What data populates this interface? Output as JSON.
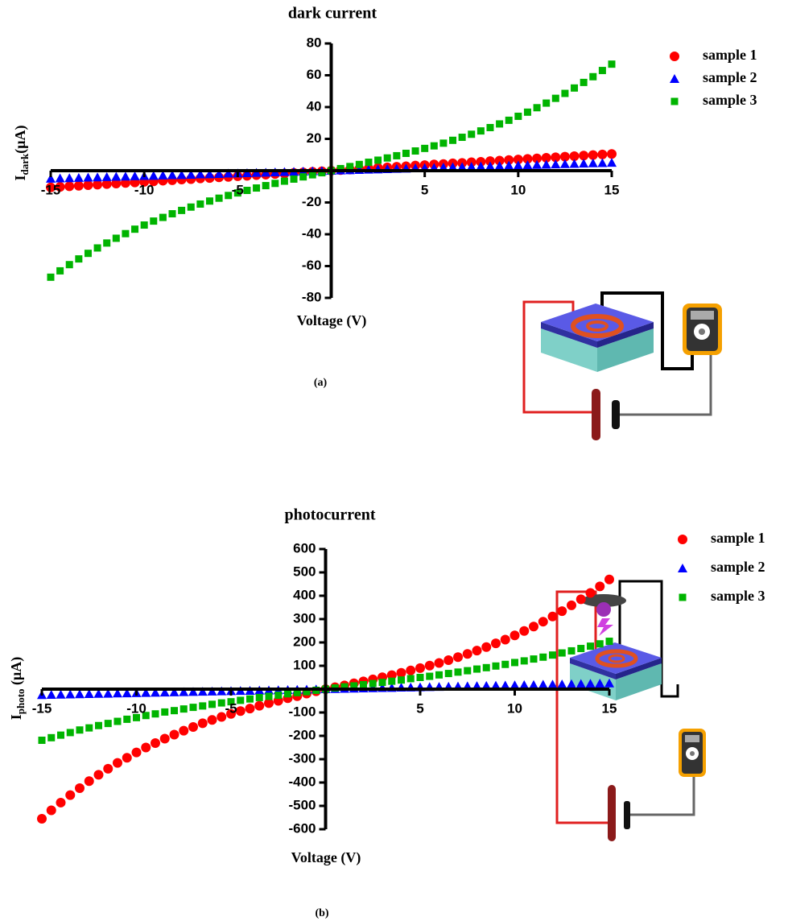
{
  "chart_data": [
    {
      "type": "scatter",
      "title": "dark current",
      "x_label": "Voltage (V)",
      "y_label": [
        "I",
        "dark",
        "(μA)"
      ],
      "caption": "(a)",
      "x": [
        -15,
        -14.5,
        -14,
        -13.5,
        -13,
        -12.5,
        -12,
        -11.5,
        -11,
        -10.5,
        -10,
        -9.5,
        -9,
        -8.5,
        -8,
        -7.5,
        -7,
        -6.5,
        -6,
        -5.5,
        -5,
        -4.5,
        -4,
        -3.5,
        -3,
        -2.5,
        -2,
        -1.5,
        -1,
        -0.5,
        0,
        0.5,
        1,
        1.5,
        2,
        2.5,
        3,
        3.5,
        4,
        4.5,
        5,
        5.5,
        6,
        6.5,
        7,
        7.5,
        8,
        8.5,
        9,
        9.5,
        10,
        10.5,
        11,
        11.5,
        12,
        12.5,
        13,
        13.5,
        14,
        14.5,
        15
      ],
      "series": [
        {
          "name": "sample 1",
          "color": "#ff0000",
          "marker": "circle",
          "values": [
            -10.5,
            -10.2,
            -9.8,
            -9.5,
            -9.1,
            -8.8,
            -8.4,
            -8.1,
            -7.7,
            -7.4,
            -7,
            -6.7,
            -6.3,
            -6,
            -5.6,
            -5.3,
            -4.9,
            -4.6,
            -4.2,
            -3.9,
            -3.5,
            -3.2,
            -2.8,
            -2.5,
            -2.1,
            -1.8,
            -1.4,
            -1.1,
            -0.7,
            -0.4,
            0,
            0.4,
            0.7,
            1.1,
            1.4,
            1.8,
            2.1,
            2.5,
            2.8,
            3.2,
            3.5,
            3.9,
            4.2,
            4.6,
            4.9,
            5.3,
            5.6,
            6,
            6.3,
            6.7,
            7,
            7.4,
            7.7,
            8.1,
            8.4,
            8.8,
            9.1,
            9.5,
            9.8,
            10.2,
            10.5
          ]
        },
        {
          "name": "sample 2",
          "color": "#0000ff",
          "marker": "triangle",
          "values": [
            -5,
            -4.8,
            -4.7,
            -4.5,
            -4.3,
            -4.2,
            -4,
            -3.8,
            -3.7,
            -3.5,
            -3.3,
            -3.2,
            -3,
            -2.8,
            -2.7,
            -2.5,
            -2.3,
            -2.2,
            -2,
            -1.8,
            -1.7,
            -1.5,
            -1.3,
            -1.2,
            -1,
            -0.8,
            -0.7,
            -0.5,
            -0.3,
            -0.2,
            0,
            0.2,
            0.3,
            0.5,
            0.7,
            0.8,
            1,
            1.2,
            1.3,
            1.5,
            1.7,
            1.8,
            2,
            2.2,
            2.3,
            2.5,
            2.7,
            2.8,
            3,
            3.2,
            3.3,
            3.5,
            3.7,
            3.8,
            4,
            4.2,
            4.3,
            4.5,
            4.7,
            4.8,
            5
          ]
        },
        {
          "name": "sample 3",
          "color": "#00b400",
          "marker": "square",
          "values": [
            -67,
            -63,
            -59.1,
            -55.5,
            -52,
            -48.6,
            -45.5,
            -42.5,
            -39.6,
            -36.8,
            -34.2,
            -31.7,
            -29.4,
            -27.1,
            -25,
            -22.9,
            -21,
            -19.1,
            -17.3,
            -15.6,
            -14,
            -12.4,
            -10.9,
            -9.4,
            -8,
            -6.6,
            -5.3,
            -3.9,
            -2.6,
            -1.3,
            0,
            1.3,
            2.6,
            3.9,
            5.3,
            6.6,
            8,
            9.4,
            10.9,
            12.4,
            14,
            15.6,
            17.3,
            19.1,
            21,
            22.9,
            25,
            27.1,
            29.4,
            31.7,
            34.2,
            36.8,
            39.6,
            42.5,
            45.5,
            48.6,
            52,
            55.5,
            59.1,
            63,
            67
          ]
        }
      ],
      "xlim": [
        -15,
        15
      ],
      "xticks": [
        -15,
        -10,
        -5,
        5,
        10,
        15
      ],
      "ylim": [
        -80,
        80
      ],
      "yticks": [
        80,
        60,
        40,
        20,
        -20,
        -40,
        -60,
        -80
      ],
      "legend": "upper right",
      "grid": false
    },
    {
      "type": "scatter",
      "title": "photocurrent",
      "x_label": "Voltage (V)",
      "y_label": [
        "I",
        "photo",
        " (μA)"
      ],
      "caption": "(b)",
      "x": [
        -15,
        -14.5,
        -14,
        -13.5,
        -13,
        -12.5,
        -12,
        -11.5,
        -11,
        -10.5,
        -10,
        -9.5,
        -9,
        -8.5,
        -8,
        -7.5,
        -7,
        -6.5,
        -6,
        -5.5,
        -5,
        -4.5,
        -4,
        -3.5,
        -3,
        -2.5,
        -2,
        -1.5,
        -1,
        -0.5,
        0,
        0.5,
        1,
        1.5,
        2,
        2.5,
        3,
        3.5,
        4,
        4.5,
        5,
        5.5,
        6,
        6.5,
        7,
        7.5,
        8,
        8.5,
        9,
        9.5,
        10,
        10.5,
        11,
        11.5,
        12,
        12.5,
        13,
        13.5,
        14,
        14.5,
        15
      ],
      "series": [
        {
          "name": "sample 1",
          "color": "#ff0000",
          "marker": "circle",
          "values": [
            -555,
            -519,
            -486,
            -454,
            -424,
            -394,
            -367,
            -341,
            -316,
            -294,
            -271,
            -250,
            -231,
            -212,
            -195,
            -178,
            -162,
            -146,
            -132,
            -119,
            -106,
            -94,
            -83,
            -71,
            -60,
            -50,
            -39,
            -30,
            -19,
            -9,
            0,
            8,
            16,
            25,
            33,
            42,
            51,
            60,
            70,
            80,
            90,
            101,
            112,
            124,
            137,
            151,
            165,
            180,
            196,
            212,
            230,
            249,
            268,
            289,
            311,
            334,
            359,
            385,
            412,
            440,
            470
          ]
        },
        {
          "name": "sample 2",
          "color": "#0000ff",
          "marker": "triangle",
          "values": [
            -25,
            -24.2,
            -23.3,
            -22.5,
            -21.7,
            -20.8,
            -20,
            -19.2,
            -18.3,
            -17.5,
            -16.7,
            -15.8,
            -15,
            -14.2,
            -13.3,
            -12.5,
            -11.7,
            -10.8,
            -10,
            -9.2,
            -8.3,
            -7.5,
            -6.7,
            -5.8,
            -5,
            -4.2,
            -3.3,
            -2.5,
            -1.7,
            -0.8,
            0,
            0.8,
            1.7,
            2.5,
            3.3,
            4.2,
            5,
            5.8,
            6.7,
            7.5,
            8.3,
            9.2,
            10,
            10.8,
            11.7,
            12.5,
            13.3,
            14.2,
            15,
            15.8,
            16.7,
            17.5,
            18.3,
            19.2,
            20,
            20.8,
            21.7,
            22.5,
            23.3,
            24.2,
            25
          ]
        },
        {
          "name": "sample 3",
          "color": "#00b400",
          "marker": "square",
          "values": [
            -219,
            -208,
            -197,
            -186,
            -175,
            -166,
            -156,
            -147,
            -138,
            -129,
            -122,
            -113,
            -106,
            -98,
            -92,
            -85,
            -78,
            -72,
            -65,
            -59,
            -54,
            -48,
            -42,
            -36,
            -31,
            -26,
            -20,
            -15,
            -11,
            -5,
            0,
            5,
            10,
            14,
            19,
            24,
            29,
            34,
            39,
            45,
            50,
            55,
            61,
            67,
            73,
            79,
            86,
            92,
            99,
            106,
            114,
            121,
            129,
            137,
            146,
            155,
            164,
            174,
            184,
            194,
            205
          ]
        }
      ],
      "xlim": [
        -15,
        15
      ],
      "xticks": [
        -15,
        -10,
        -5,
        5,
        10,
        15
      ],
      "ylim": [
        -600,
        600
      ],
      "yticks": [
        600,
        500,
        400,
        300,
        200,
        100,
        -100,
        -200,
        -300,
        -400,
        -500,
        -600
      ],
      "legend": "upper right",
      "grid": false
    }
  ]
}
